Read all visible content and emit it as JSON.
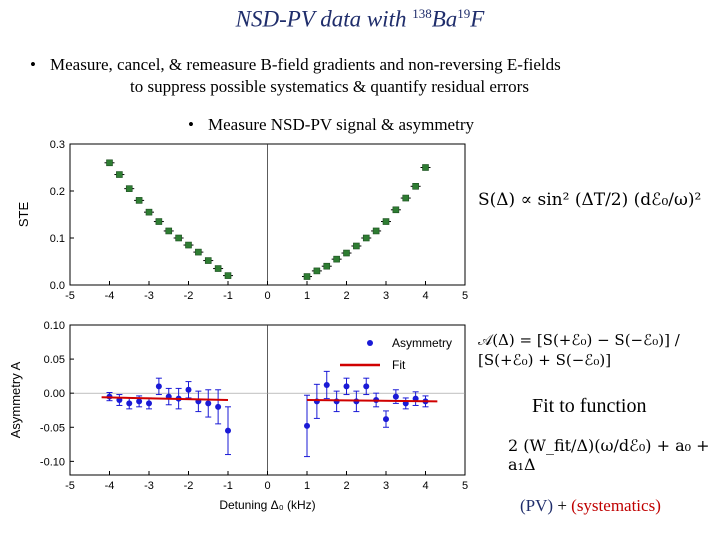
{
  "slide": {
    "title_main": "NSD-PV data with ",
    "title_sup1": "138",
    "title_mid": "Ba",
    "title_sup2": "19",
    "title_end": "F",
    "bullet1_line1": "Measure, cancel, & remeasure B-field gradients and non-reversing E-fields",
    "bullet1_line2": "to suppress possible systematics & quantify residual errors",
    "bullet2": "Measure NSD-PV signal & asymmetry",
    "formula_S": "S(Δ) ∝ sin² (ΔT/2) (dℰ₀/ω)²",
    "formula_A": "𝒜(Δ) = [S(+ℰ₀) − S(−ℰ₀)] / [S(+ℰ₀) + S(−ℰ₀)]",
    "fit_label": "Fit to function",
    "formula_fit": "2 (W_fit/Δ)(ω/dℰ₀) + a₀ + a₁Δ",
    "foot_pv": "(PV)",
    "foot_plus": "+",
    "foot_sys": "(systematics)"
  },
  "chart_data": [
    {
      "type": "scatter",
      "ylabel": "STE",
      "xlim": [
        -5,
        5
      ],
      "ylim": [
        0.0,
        0.3
      ],
      "xticks": [
        -5,
        -4,
        -3,
        -2,
        -1,
        0,
        1,
        2,
        3,
        4,
        5
      ],
      "yticks": [
        "0.0",
        "0.1",
        "0.2",
        "0.3"
      ],
      "grid": false,
      "series": [
        {
          "color": "#2e7d32",
          "x": [
            -4.0,
            -3.75,
            -3.5,
            -3.25,
            -3.0,
            -2.75,
            -2.5,
            -2.25,
            -2.0,
            -1.75,
            -1.5,
            -1.25,
            -1.0,
            1.0,
            1.25,
            1.5,
            1.75,
            2.0,
            2.25,
            2.5,
            2.75,
            3.0,
            3.25,
            3.5,
            3.75,
            4.0
          ],
          "y": [
            0.26,
            0.235,
            0.205,
            0.18,
            0.155,
            0.135,
            0.115,
            0.1,
            0.085,
            0.07,
            0.052,
            0.035,
            0.02,
            0.018,
            0.03,
            0.04,
            0.055,
            0.068,
            0.083,
            0.1,
            0.115,
            0.135,
            0.16,
            0.185,
            0.21,
            0.25
          ]
        }
      ]
    },
    {
      "type": "scatter",
      "xlabel": "Detuning Δ₀ (kHz)",
      "ylabel": "Asymmetry A",
      "xlim": [
        -5,
        5
      ],
      "ylim": [
        -0.12,
        0.1
      ],
      "xticks": [
        -5,
        -4,
        -3,
        -2,
        -1,
        0,
        1,
        2,
        3,
        4,
        5
      ],
      "yticks": [
        "-0.10",
        "-0.05",
        "0.00",
        "0.05",
        "0.10"
      ],
      "grid": false,
      "legend_position": "top-right",
      "series": [
        {
          "name": "Asymmetry",
          "color": "#1a1ad6",
          "x": [
            -4.0,
            -3.75,
            -3.5,
            -3.25,
            -3.0,
            -2.75,
            -2.5,
            -2.25,
            -2.0,
            -1.75,
            -1.5,
            -1.25,
            -1.0,
            1.0,
            1.25,
            1.5,
            1.75,
            2.0,
            2.25,
            2.5,
            2.75,
            3.0,
            3.25,
            3.5,
            3.75,
            4.0
          ],
          "y": [
            -0.005,
            -0.01,
            -0.015,
            -0.012,
            -0.015,
            0.01,
            -0.005,
            -0.008,
            0.005,
            -0.012,
            -0.015,
            -0.02,
            -0.055,
            -0.048,
            -0.012,
            0.012,
            -0.012,
            0.01,
            -0.012,
            0.01,
            -0.01,
            -0.038,
            -0.005,
            -0.015,
            -0.008,
            -0.012
          ],
          "err": [
            0.006,
            0.008,
            0.008,
            0.008,
            0.008,
            0.012,
            0.012,
            0.015,
            0.012,
            0.015,
            0.02,
            0.025,
            0.035,
            0.045,
            0.025,
            0.02,
            0.015,
            0.012,
            0.015,
            0.012,
            0.01,
            0.012,
            0.01,
            0.008,
            0.01,
            0.008
          ]
        },
        {
          "name": "Fit",
          "color": "#d00000",
          "segments": [
            {
              "x": [
                -4.2,
                -1.0
              ],
              "y": [
                -0.006,
                -0.01
              ]
            },
            {
              "x": [
                1.0,
                4.3
              ],
              "y": [
                -0.01,
                -0.012
              ]
            }
          ]
        }
      ]
    }
  ]
}
